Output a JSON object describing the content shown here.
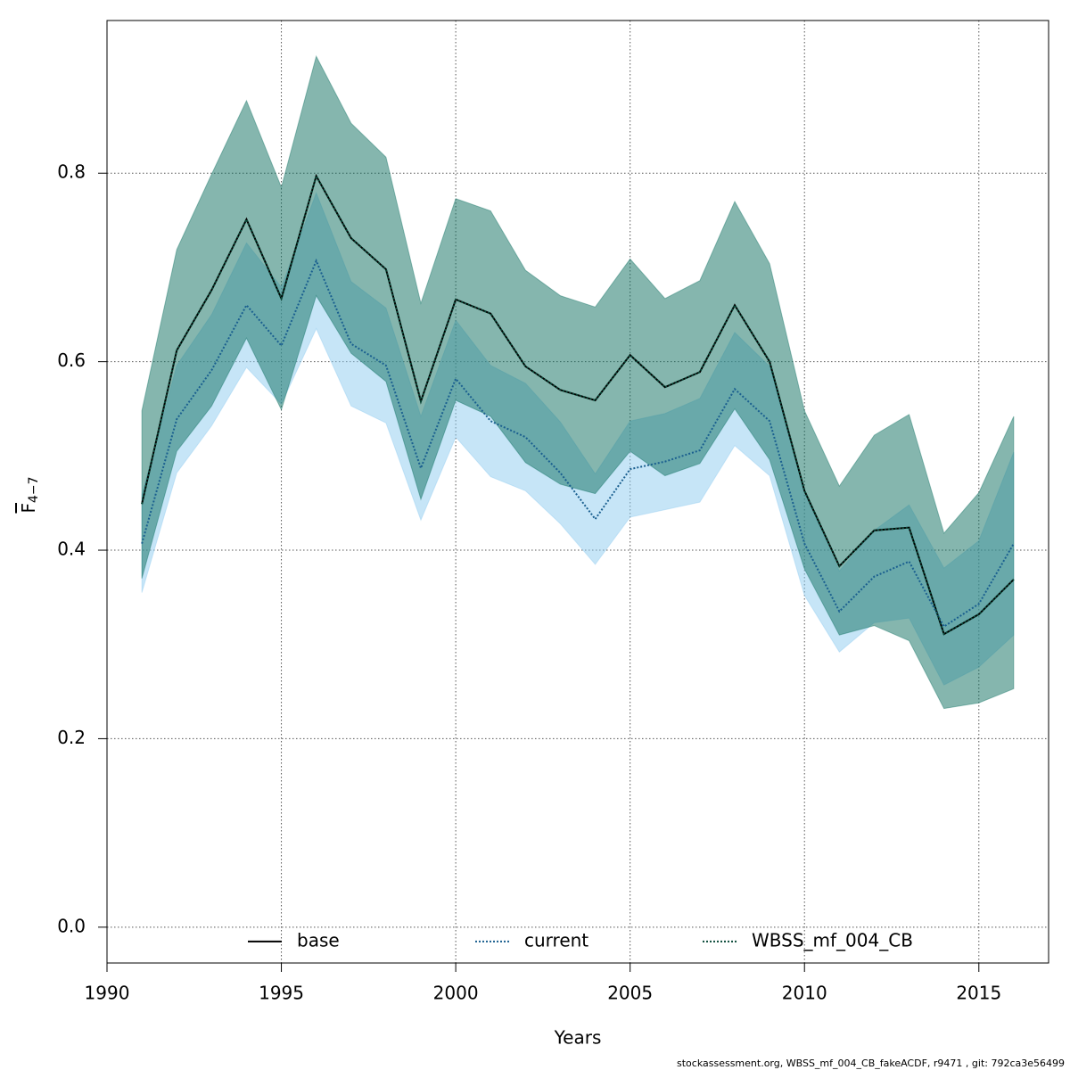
{
  "chart_data": {
    "type": "line",
    "xlabel": "Years",
    "ylabel": "F",
    "ylabel_subscript": "4−7",
    "footnote": "stockassessment.org, WBSS_mf_004_CB_fakeACDF, r9471 , git: 792ca3e56499",
    "x": [
      1991,
      1992,
      1993,
      1994,
      1995,
      1996,
      1997,
      1998,
      1999,
      2000,
      2001,
      2002,
      2003,
      2004,
      2005,
      2006,
      2007,
      2008,
      2009,
      2010,
      2011,
      2012,
      2013,
      2014,
      2015,
      2016
    ],
    "series": [
      {
        "name": "base",
        "color": "#000000",
        "dash": "solid",
        "band_color": "#0b6e5e",
        "values": [
          0.449,
          0.612,
          0.676,
          0.751,
          0.667,
          0.797,
          0.731,
          0.698,
          0.558,
          0.666,
          0.651,
          0.595,
          0.57,
          0.559,
          0.607,
          0.573,
          0.589,
          0.66,
          0.6,
          0.463,
          0.383,
          0.421,
          0.424,
          0.311,
          0.332,
          0.369
        ],
        "upper": [
          0.548,
          0.719,
          0.799,
          0.877,
          0.785,
          0.924,
          0.853,
          0.817,
          0.662,
          0.773,
          0.76,
          0.697,
          0.67,
          0.658,
          0.709,
          0.667,
          0.686,
          0.77,
          0.704,
          0.548,
          0.468,
          0.522,
          0.544,
          0.418,
          0.461,
          0.542
        ],
        "lower": [
          0.37,
          0.505,
          0.553,
          0.625,
          0.549,
          0.67,
          0.609,
          0.579,
          0.454,
          0.559,
          0.542,
          0.493,
          0.47,
          0.46,
          0.505,
          0.479,
          0.492,
          0.55,
          0.496,
          0.38,
          0.31,
          0.32,
          0.304,
          0.232,
          0.238,
          0.253
        ]
      },
      {
        "name": "current",
        "color": "#1a5f8f",
        "dash": "dotted",
        "band_color": "#8ecbef",
        "values": [
          0.407,
          0.539,
          0.591,
          0.66,
          0.617,
          0.707,
          0.619,
          0.596,
          0.487,
          0.582,
          0.537,
          0.52,
          0.482,
          0.433,
          0.486,
          0.494,
          0.506,
          0.571,
          0.537,
          0.407,
          0.335,
          0.372,
          0.388,
          0.319,
          0.343,
          0.407
        ],
        "upper": [
          0.459,
          0.596,
          0.65,
          0.726,
          0.679,
          0.779,
          0.685,
          0.657,
          0.542,
          0.644,
          0.596,
          0.577,
          0.536,
          0.481,
          0.537,
          0.545,
          0.561,
          0.631,
          0.595,
          0.462,
          0.378,
          0.421,
          0.448,
          0.381,
          0.41,
          0.504
        ],
        "lower": [
          0.355,
          0.482,
          0.532,
          0.594,
          0.555,
          0.635,
          0.553,
          0.535,
          0.432,
          0.52,
          0.478,
          0.463,
          0.428,
          0.385,
          0.435,
          0.443,
          0.451,
          0.511,
          0.479,
          0.352,
          0.292,
          0.323,
          0.328,
          0.257,
          0.276,
          0.31
        ]
      },
      {
        "name": "WBSS_mf_004_CB",
        "color": "#0b4a3a",
        "dash": "dotted",
        "values": [
          0.449,
          0.612,
          0.676,
          0.751,
          0.667,
          0.797,
          0.731,
          0.698,
          0.558,
          0.666,
          0.651,
          0.595,
          0.57,
          0.559,
          0.607,
          0.573,
          0.589,
          0.66,
          0.6,
          0.463,
          0.383,
          0.421,
          0.424,
          0.311,
          0.332,
          0.369
        ]
      }
    ],
    "xlim": [
      1990,
      2017
    ],
    "ylim": [
      -0.038,
      0.962
    ],
    "xticks": [
      1990,
      1995,
      2000,
      2005,
      2010,
      2015
    ],
    "yticks": [
      {
        "value": 0,
        "label": "0.0"
      },
      0.2,
      0.4,
      0.6,
      0.8
    ],
    "grid": true,
    "legend": "bottom"
  }
}
